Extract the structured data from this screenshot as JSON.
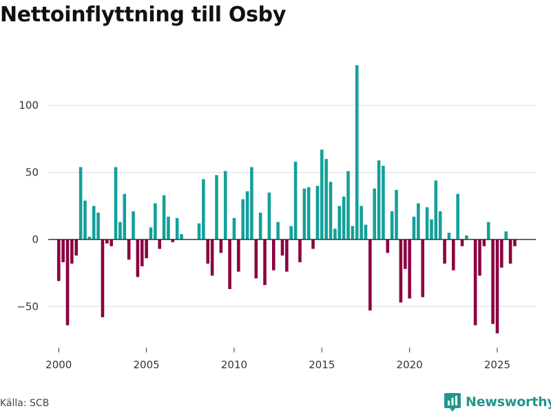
{
  "title": "Nettoinflyttning till Osby",
  "source": "Källa: SCB",
  "brand": "Newsworthy",
  "colors": {
    "positive": "#13a09a",
    "negative": "#8b0040",
    "brand": "#21968e",
    "grid": "#dcdcdc",
    "zero": "#333333"
  },
  "chart_data": {
    "type": "bar",
    "title": "Nettoinflyttning till Osby",
    "xlabel": "",
    "ylabel": "",
    "xlim": [
      1999.4,
      2027.2
    ],
    "ylim": [
      -74,
      135
    ],
    "yticks": [
      {
        "value": -50,
        "label": "−50"
      },
      {
        "value": 0,
        "label": "0"
      },
      {
        "value": 50,
        "label": "50"
      },
      {
        "value": 100,
        "label": "100"
      }
    ],
    "xticks": [
      {
        "value": 2000,
        "label": "2000"
      },
      {
        "value": 2005,
        "label": "2005"
      },
      {
        "value": 2010,
        "label": "2010"
      },
      {
        "value": 2015,
        "label": "2015"
      },
      {
        "value": 2020,
        "label": "2020"
      },
      {
        "value": 2025,
        "label": "2025"
      }
    ],
    "start": 2000,
    "period": "quarterly",
    "values": [
      -31,
      -17,
      -64,
      -18,
      -12,
      54,
      29,
      2,
      25,
      20,
      -58,
      -3,
      -5,
      54,
      13,
      34,
      -15,
      21,
      -28,
      -20,
      -14,
      9,
      27,
      -7,
      33,
      17,
      -2,
      16,
      4,
      0,
      0,
      0,
      12,
      45,
      -18,
      -27,
      48,
      -10,
      51,
      -37,
      16,
      -24,
      30,
      36,
      54,
      -29,
      20,
      -34,
      35,
      -23,
      13,
      -12,
      -24,
      10,
      58,
      -17,
      38,
      39,
      -7,
      40,
      67,
      60,
      43,
      8,
      25,
      32,
      51,
      10,
      130,
      25,
      11,
      -53,
      38,
      59,
      55,
      -10,
      21,
      37,
      -47,
      -22,
      -44,
      17,
      27,
      -43,
      24,
      15,
      44,
      21,
      -18,
      5,
      -23,
      34,
      -5,
      3,
      0,
      -64,
      -27,
      -5,
      13,
      -63,
      -70,
      -21,
      6,
      -18,
      -5
    ]
  }
}
